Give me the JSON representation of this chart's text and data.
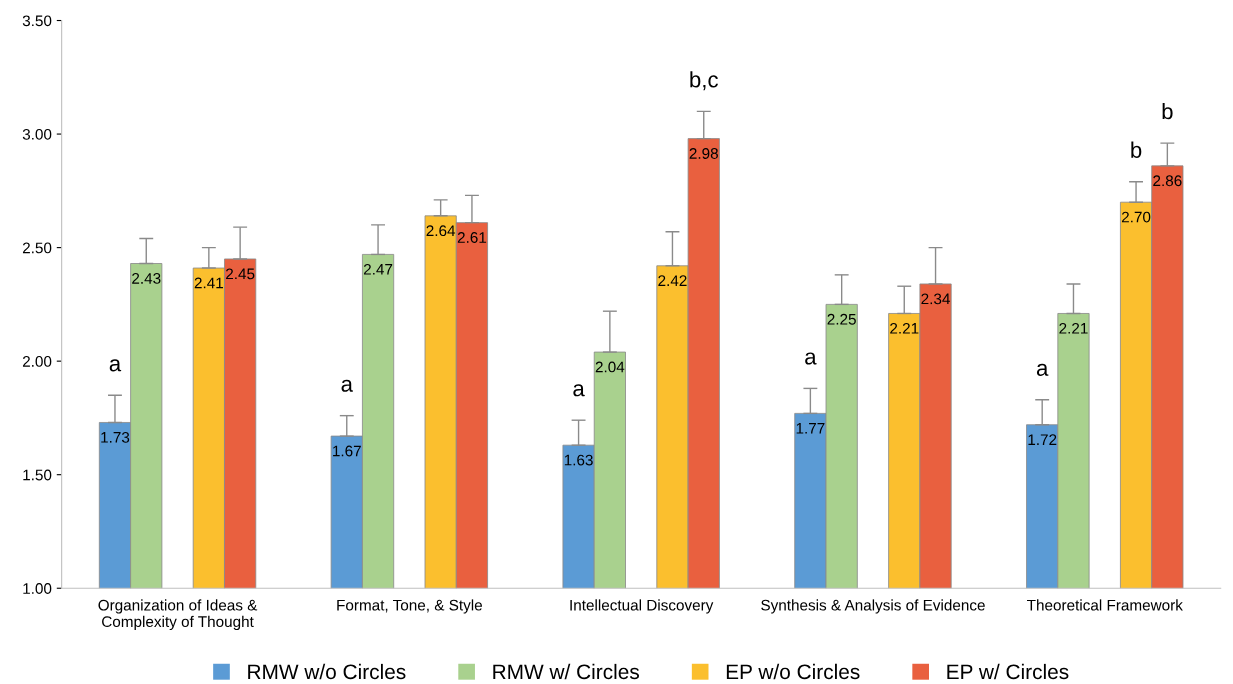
{
  "chart_data": {
    "type": "bar",
    "categories": [
      "Organization of Ideas &\nComplexity of Thought",
      "Format, Tone, & Style",
      "Intellectual Discovery",
      "Synthesis & Analysis of Evidence",
      "Theoretical Framework"
    ],
    "series": [
      {
        "name": "RMW w/o Circles",
        "color": "#5b9bd5",
        "values": [
          1.73,
          1.67,
          1.63,
          1.77,
          1.72
        ],
        "value_labels": [
          "1.73",
          "1.67",
          "1.63",
          "1.77",
          "1.72"
        ],
        "errors": [
          [
            1.73,
            1.85
          ],
          [
            1.67,
            1.76
          ],
          [
            1.63,
            1.74
          ],
          [
            1.77,
            1.88
          ],
          [
            1.72,
            1.83
          ]
        ]
      },
      {
        "name": "RMW w/ Circles",
        "color": "#a9d18e",
        "values": [
          2.43,
          2.47,
          2.04,
          2.25,
          2.21
        ],
        "value_labels": [
          "2.43",
          "2.47",
          "2.04",
          "2.25",
          "2.21"
        ],
        "errors": [
          [
            2.43,
            2.54
          ],
          [
            2.47,
            2.6
          ],
          [
            2.04,
            2.22
          ],
          [
            2.25,
            2.38
          ],
          [
            2.21,
            2.34
          ]
        ]
      },
      {
        "name": "EP w/o Circles",
        "color": "#fbbf2e",
        "values": [
          2.41,
          2.64,
          2.42,
          2.21,
          2.7
        ],
        "value_labels": [
          "2.41",
          "2.64",
          "2.42",
          "2.21",
          "2.70"
        ],
        "errors": [
          [
            2.41,
            2.5
          ],
          [
            2.64,
            2.71
          ],
          [
            2.42,
            2.57
          ],
          [
            2.21,
            2.33
          ],
          [
            2.7,
            2.79
          ]
        ]
      },
      {
        "name": "EP w/ Circles",
        "color": "#e9603f",
        "values": [
          2.45,
          2.61,
          2.98,
          2.34,
          2.86
        ],
        "value_labels": [
          "2.45",
          "2.61",
          "2.98",
          "2.34",
          "2.86"
        ],
        "errors": [
          [
            2.45,
            2.59
          ],
          [
            2.61,
            2.73
          ],
          [
            2.98,
            3.1
          ],
          [
            2.34,
            2.5
          ],
          [
            2.86,
            2.96
          ]
        ]
      }
    ],
    "ylim": [
      1,
      3.5
    ],
    "yticks": [
      {
        "value": 1,
        "label": "1.00"
      },
      {
        "value": 1.5,
        "label": "1.50"
      },
      {
        "value": 2,
        "label": "2.00"
      },
      {
        "value": 2.5,
        "label": "2.50"
      },
      {
        "value": 3,
        "label": "3.00"
      },
      {
        "value": 3.5,
        "label": "3.50"
      }
    ],
    "grid": false,
    "legend": "bottom",
    "annotations": [
      "a",
      "a",
      "a",
      "b,c",
      "a",
      "a",
      "b",
      "b"
    ]
  }
}
